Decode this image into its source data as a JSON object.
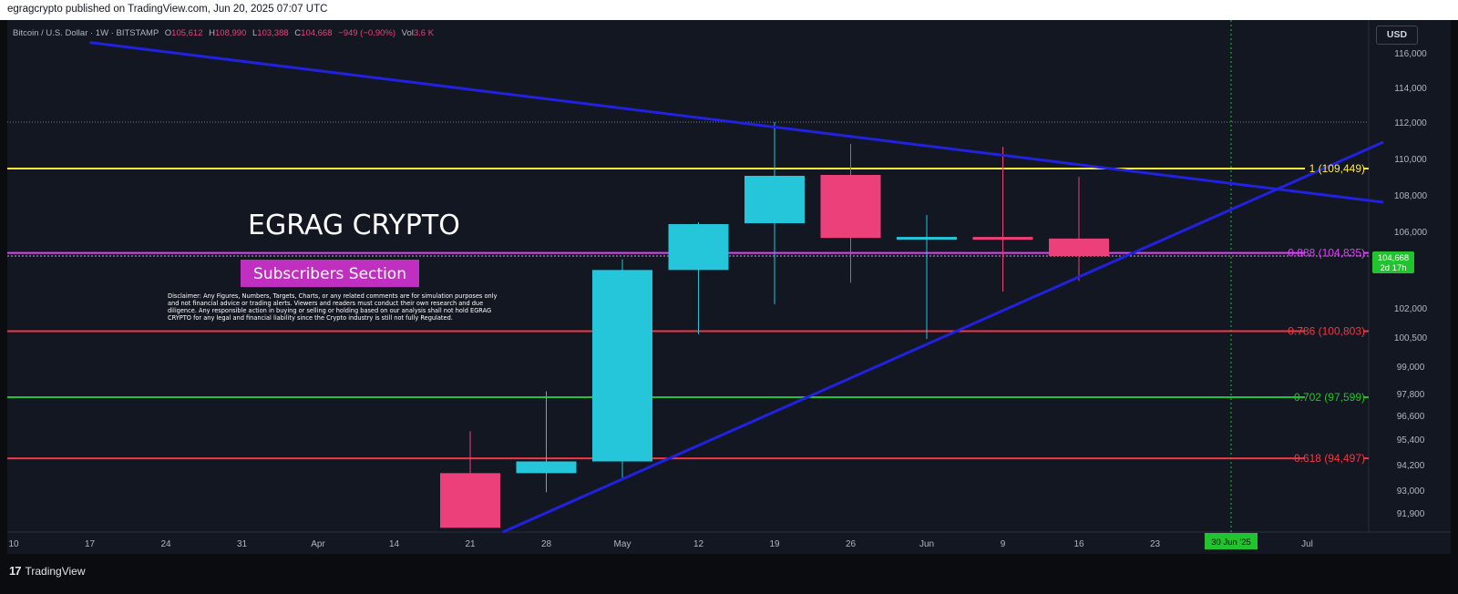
{
  "header": {
    "published_text": "egragcrypto published on TradingView.com, Jun 20, 2025 07:07 UTC"
  },
  "footer": {
    "logo_mark": "17",
    "brand": "TradingView"
  },
  "legend": {
    "symbol": "Bitcoin / U.S. Dollar · 1W · BITSTAMP",
    "open_label": "O",
    "open": "105,612",
    "high_label": "H",
    "high": "108,990",
    "low_label": "L",
    "low": "103,388",
    "close_label": "C",
    "close": "104,668",
    "change": "−949 (−0.90%)",
    "vol_label": "Vol",
    "vol": "3.6 K"
  },
  "currency_button": "USD",
  "overlay": {
    "title": "EGRAG CRYPTO",
    "badge": "Subscribers Section",
    "disclaimer_lines": [
      "Disclaimer: Any Figures, Numbers, Targets, Charts, or any related comments are for simulation purposes only",
      "and not financial advice or trading alerts. Viewers and readers must conduct their own research and due",
      "diligence. Any responsible action in buying or selling or holding based on our analysis shall not hold EGRAG",
      "CRYPTO for any legal and financial liability since the Crypto industry is still not fully Regulated."
    ]
  },
  "price_tag": {
    "value": "104,668",
    "countdown": "2d 17h"
  },
  "date_tag": "30 Jun '25",
  "colors": {
    "background": "#131722",
    "bull": "#26c6da",
    "bear": "#ec407a",
    "trendline": "#2121e0",
    "fib_1": "#ffeb3b",
    "fib_0888": "#e040fb",
    "fib_0786": "#f23645",
    "fib_0702": "#22c32e",
    "fib_0618": "#f23645",
    "current_price": "#22c32e",
    "date_marker": "#22c32e",
    "axis_text": "#b2b5be"
  },
  "chart_data": {
    "type": "candlestick",
    "symbol": "Bitcoin / U.S. Dollar",
    "interval": "1W",
    "exchange": "BITSTAMP",
    "x_tick_labels": [
      "10",
      "17",
      "24",
      "31",
      "Apr",
      "14",
      "21",
      "28",
      "May",
      "12",
      "19",
      "26",
      "Jun",
      "9",
      "16",
      "23",
      "30 Jun '25",
      "Jul"
    ],
    "y_tick_labels": [
      "116,000",
      "114,000",
      "112,000",
      "110,000",
      "108,000",
      "106,000",
      "102,000",
      "100,500",
      "99,000",
      "97,800",
      "96,600",
      "95,400",
      "94,200",
      "93,000",
      "91,900"
    ],
    "candles": [
      {
        "date": "2025-04-21",
        "open": 93800,
        "high": 95800,
        "low": 91200,
        "close": 91200
      },
      {
        "date": "2025-04-28",
        "open": 93800,
        "high": 97900,
        "low": 92900,
        "close": 94350
      },
      {
        "date": "2025-05-05",
        "open": 94350,
        "high": 104500,
        "low": 93500,
        "close": 103950
      },
      {
        "date": "2025-05-12",
        "open": 103950,
        "high": 106500,
        "low": 100650,
        "close": 106400
      },
      {
        "date": "2025-05-19",
        "open": 106450,
        "high": 112000,
        "low": 102200,
        "close": 109050
      },
      {
        "date": "2025-05-26",
        "open": 109100,
        "high": 110800,
        "low": 103300,
        "close": 105650
      },
      {
        "date": "2025-06-02",
        "open": 105600,
        "high": 106900,
        "low": 100400,
        "close": 105700
      },
      {
        "date": "2025-06-09",
        "open": 105700,
        "high": 110650,
        "low": 102850,
        "close": 105550
      },
      {
        "date": "2025-06-16",
        "open": 105612,
        "high": 108990,
        "low": 103388,
        "close": 104668
      }
    ],
    "horizontal_levels": [
      {
        "label": "1 (109,449)",
        "value": 109449,
        "color": "#ffeb3b"
      },
      {
        "label": "0.888 (104,835)",
        "value": 104835,
        "color": "#e040fb"
      },
      {
        "label": "0.786 (100,803)",
        "value": 100803,
        "color": "#f23645"
      },
      {
        "label": "0.702 (97,599)",
        "value": 97599,
        "color": "#22c32e"
      },
      {
        "label": "0.618 (94,497)",
        "value": 94497,
        "color": "#f23645"
      }
    ],
    "trendlines": [
      {
        "name": "descending resistance",
        "from": {
          "date": "2025-03-17",
          "price": 116600
        },
        "to": {
          "date": "2025-07-14",
          "price": 107600
        }
      },
      {
        "name": "ascending support",
        "from": {
          "date": "2025-04-24",
          "price": 91000
        },
        "to": {
          "date": "2025-07-14",
          "price": 110900
        }
      }
    ],
    "current_price": 104668,
    "current_price_countdown": "2d 17h",
    "dotted_reference_price": 112000,
    "date_marker": "2025-06-30"
  }
}
